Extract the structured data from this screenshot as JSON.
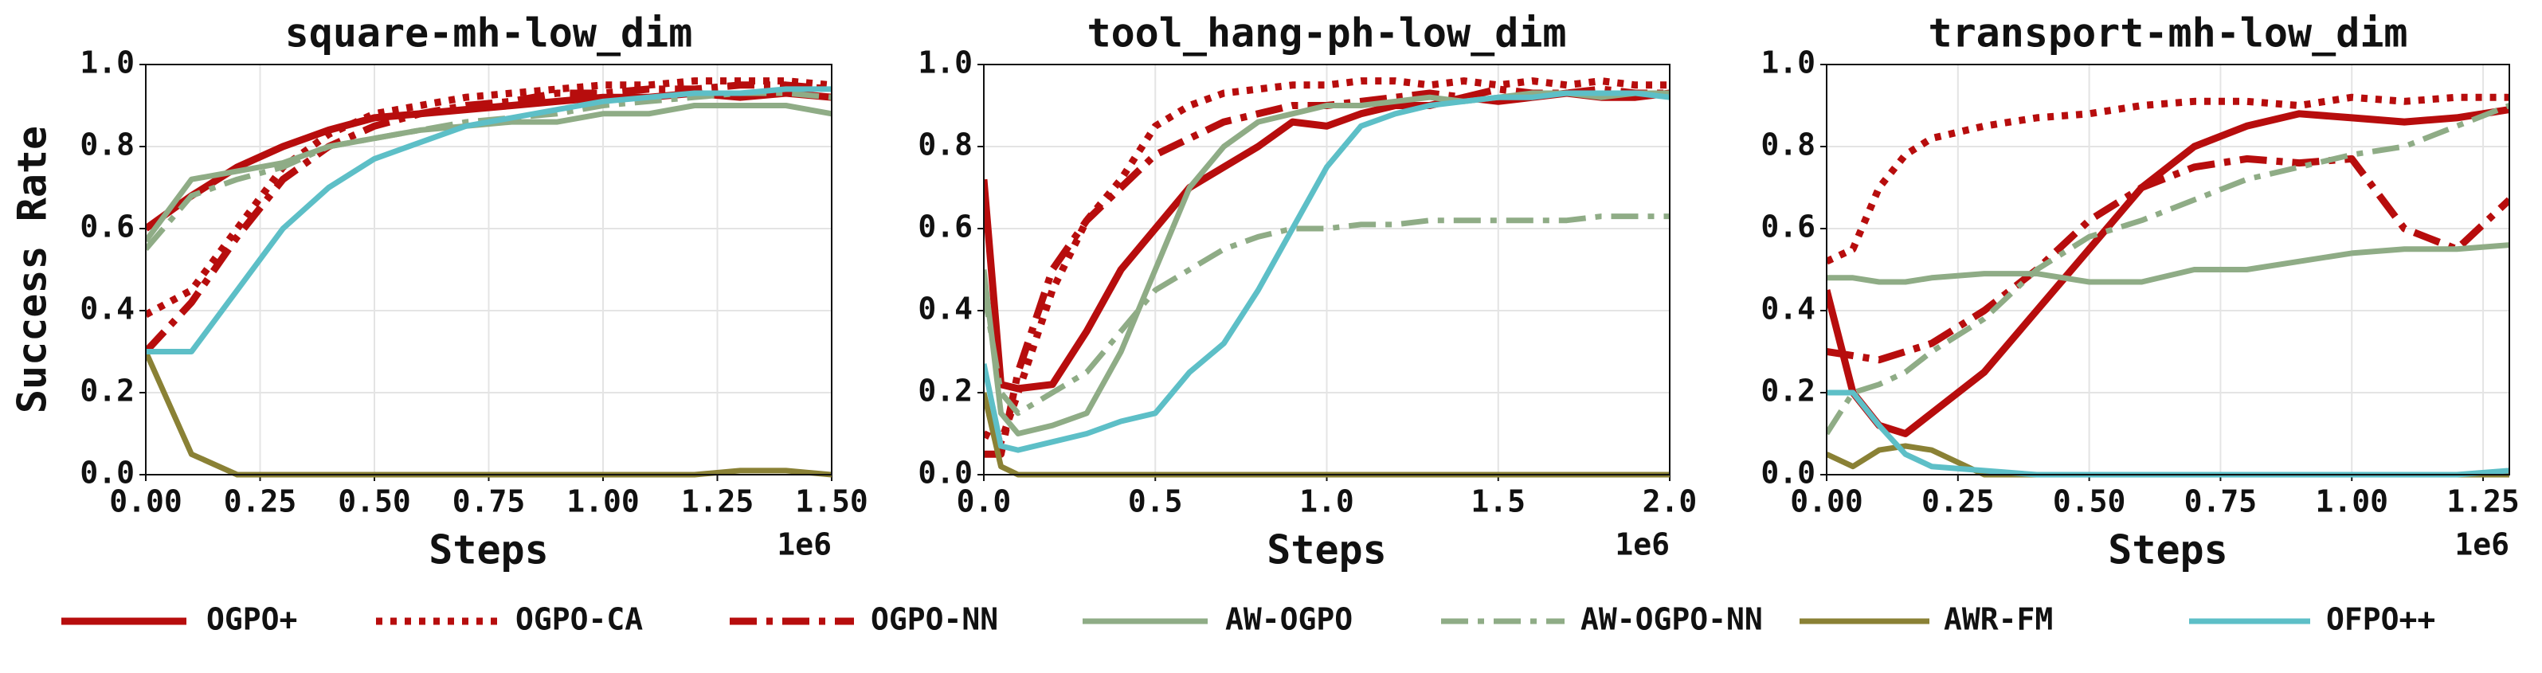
{
  "chart_data": [
    {
      "type": "line",
      "title": "square-mh-low_dim",
      "y_label": "Success Rate",
      "x_label": "Steps",
      "x_offset_label": "1e6",
      "xlim": [
        0,
        1.5
      ],
      "ylim": [
        0,
        1
      ],
      "grid": true,
      "xticks": [
        {
          "value": 0,
          "label": "0.00"
        },
        {
          "value": 0.25,
          "label": "0.25"
        },
        {
          "value": 0.5,
          "label": "0.50"
        },
        {
          "value": 0.75,
          "label": "0.75"
        },
        {
          "value": 1,
          "label": "1.00"
        },
        {
          "value": 1.25,
          "label": "1.25"
        },
        {
          "value": 1.5,
          "label": "1.50"
        }
      ],
      "yticks": [
        {
          "value": 0,
          "label": "0.0"
        },
        {
          "value": 0.2,
          "label": "0.2"
        },
        {
          "value": 0.4,
          "label": "0.4"
        },
        {
          "value": 0.6,
          "label": "0.6"
        },
        {
          "value": 0.8,
          "label": "0.8"
        },
        {
          "value": 1,
          "label": "1.0"
        }
      ],
      "x": [
        0,
        0.1,
        0.2,
        0.3,
        0.4,
        0.5,
        0.6,
        0.7,
        0.8,
        0.9,
        1.0,
        1.1,
        1.2,
        1.3,
        1.4,
        1.5
      ],
      "series": [
        {
          "name": "OGPO+",
          "color": "#b70d0d",
          "style": "solid",
          "values": [
            0.6,
            0.68,
            0.75,
            0.8,
            0.84,
            0.87,
            0.88,
            0.89,
            0.9,
            0.91,
            0.92,
            0.92,
            0.93,
            0.92,
            0.93,
            0.92
          ]
        },
        {
          "name": "OGPO-CA",
          "color": "#b70d0d",
          "style": "dotted",
          "values": [
            0.39,
            0.45,
            0.6,
            0.75,
            0.83,
            0.88,
            0.9,
            0.92,
            0.93,
            0.94,
            0.95,
            0.95,
            0.96,
            0.96,
            0.96,
            0.95
          ]
        },
        {
          "name": "OGPO-NN",
          "color": "#b70d0d",
          "style": "dashdot",
          "values": [
            0.3,
            0.42,
            0.58,
            0.72,
            0.8,
            0.85,
            0.88,
            0.9,
            0.91,
            0.93,
            0.93,
            0.94,
            0.94,
            0.95,
            0.95,
            0.94
          ]
        },
        {
          "name": "AW-OGPO",
          "color": "#8fac86",
          "style": "solid",
          "values": [
            0.57,
            0.72,
            0.74,
            0.76,
            0.8,
            0.82,
            0.84,
            0.85,
            0.86,
            0.86,
            0.88,
            0.88,
            0.9,
            0.9,
            0.9,
            0.88
          ]
        },
        {
          "name": "AW-OGPO-NN",
          "color": "#8fac86",
          "style": "dashdot",
          "values": [
            0.55,
            0.68,
            0.72,
            0.75,
            0.8,
            0.82,
            0.84,
            0.86,
            0.87,
            0.88,
            0.9,
            0.91,
            0.92,
            0.93,
            0.93,
            0.92
          ]
        },
        {
          "name": "AWR-FM",
          "color": "#8a8135",
          "style": "solid",
          "values": [
            0.3,
            0.05,
            0.0,
            0,
            0,
            0,
            0,
            0,
            0,
            0,
            0,
            0,
            0,
            0.01,
            0.01,
            0.0
          ]
        },
        {
          "name": "OFPO++",
          "color": "#5dbfc7",
          "style": "solid",
          "values": [
            0.3,
            0.3,
            0.45,
            0.6,
            0.7,
            0.77,
            0.81,
            0.85,
            0.87,
            0.89,
            0.91,
            0.92,
            0.93,
            0.93,
            0.94,
            0.94
          ]
        }
      ]
    },
    {
      "type": "line",
      "title": "tool_hang-ph-low_dim",
      "x_label": "Steps",
      "x_offset_label": "1e6",
      "xlim": [
        0,
        2
      ],
      "ylim": [
        0,
        1
      ],
      "grid": true,
      "xticks": [
        {
          "value": 0,
          "label": "0.0"
        },
        {
          "value": 0.5,
          "label": "0.5"
        },
        {
          "value": 1,
          "label": "1.0"
        },
        {
          "value": 1.5,
          "label": "1.5"
        },
        {
          "value": 2,
          "label": "2.0"
        }
      ],
      "yticks": [
        {
          "value": 0,
          "label": "0.0"
        },
        {
          "value": 0.2,
          "label": "0.2"
        },
        {
          "value": 0.4,
          "label": "0.4"
        },
        {
          "value": 0.6,
          "label": "0.6"
        },
        {
          "value": 0.8,
          "label": "0.8"
        },
        {
          "value": 1,
          "label": "1.0"
        }
      ],
      "x": [
        0,
        0.05,
        0.1,
        0.2,
        0.3,
        0.4,
        0.5,
        0.6,
        0.7,
        0.8,
        0.9,
        1.0,
        1.1,
        1.2,
        1.3,
        1.4,
        1.5,
        1.6,
        1.7,
        1.8,
        1.9,
        2.0
      ],
      "series": [
        {
          "name": "OGPO+",
          "color": "#b70d0d",
          "style": "solid",
          "values": [
            0.72,
            0.22,
            0.21,
            0.22,
            0.35,
            0.5,
            0.6,
            0.7,
            0.75,
            0.8,
            0.86,
            0.85,
            0.88,
            0.9,
            0.9,
            0.92,
            0.91,
            0.92,
            0.93,
            0.92,
            0.92,
            0.93
          ]
        },
        {
          "name": "OGPO-CA",
          "color": "#b70d0d",
          "style": "dotted",
          "values": [
            0.1,
            0.08,
            0.2,
            0.45,
            0.62,
            0.72,
            0.85,
            0.9,
            0.93,
            0.94,
            0.95,
            0.95,
            0.96,
            0.96,
            0.95,
            0.96,
            0.95,
            0.96,
            0.95,
            0.96,
            0.95,
            0.95
          ]
        },
        {
          "name": "OGPO-NN",
          "color": "#b70d0d",
          "style": "dashdot",
          "values": [
            0.05,
            0.05,
            0.25,
            0.5,
            0.62,
            0.7,
            0.78,
            0.82,
            0.86,
            0.88,
            0.9,
            0.9,
            0.91,
            0.92,
            0.93,
            0.92,
            0.94,
            0.93,
            0.93,
            0.94,
            0.93,
            0.93
          ]
        },
        {
          "name": "AW-OGPO",
          "color": "#8fac86",
          "style": "solid",
          "values": [
            0.5,
            0.15,
            0.1,
            0.12,
            0.15,
            0.3,
            0.5,
            0.7,
            0.8,
            0.86,
            0.88,
            0.9,
            0.9,
            0.91,
            0.92,
            0.91,
            0.92,
            0.93,
            0.93,
            0.92,
            0.93,
            0.93
          ]
        },
        {
          "name": "AW-OGPO-NN",
          "color": "#8fac86",
          "style": "dashdot",
          "values": [
            0.45,
            0.2,
            0.15,
            0.2,
            0.25,
            0.35,
            0.45,
            0.5,
            0.55,
            0.58,
            0.6,
            0.6,
            0.61,
            0.61,
            0.62,
            0.62,
            0.62,
            0.62,
            0.62,
            0.63,
            0.63,
            0.63
          ]
        },
        {
          "name": "AWR-FM",
          "color": "#8a8135",
          "style": "solid",
          "values": [
            0.2,
            0.02,
            0,
            0,
            0,
            0,
            0,
            0,
            0,
            0,
            0,
            0,
            0,
            0,
            0,
            0,
            0,
            0,
            0,
            0,
            0,
            0
          ]
        },
        {
          "name": "OFPO++",
          "color": "#5dbfc7",
          "style": "solid",
          "values": [
            0.27,
            0.07,
            0.06,
            0.08,
            0.1,
            0.13,
            0.15,
            0.25,
            0.32,
            0.45,
            0.6,
            0.75,
            0.85,
            0.88,
            0.9,
            0.91,
            0.92,
            0.92,
            0.93,
            0.93,
            0.93,
            0.92
          ]
        }
      ]
    },
    {
      "type": "line",
      "title": "transport-mh-low_dim",
      "x_label": "Steps",
      "x_offset_label": "1e6",
      "xlim": [
        0,
        1.3
      ],
      "ylim": [
        0,
        1
      ],
      "grid": true,
      "xticks": [
        {
          "value": 0,
          "label": "0.00"
        },
        {
          "value": 0.25,
          "label": "0.25"
        },
        {
          "value": 0.5,
          "label": "0.50"
        },
        {
          "value": 0.75,
          "label": "0.75"
        },
        {
          "value": 1,
          "label": "1.00"
        },
        {
          "value": 1.25,
          "label": "1.25"
        }
      ],
      "yticks": [
        {
          "value": 0,
          "label": "0.0"
        },
        {
          "value": 0.2,
          "label": "0.2"
        },
        {
          "value": 0.4,
          "label": "0.4"
        },
        {
          "value": 0.6,
          "label": "0.6"
        },
        {
          "value": 0.8,
          "label": "0.8"
        },
        {
          "value": 1,
          "label": "1.0"
        }
      ],
      "x": [
        0,
        0.05,
        0.1,
        0.15,
        0.2,
        0.3,
        0.4,
        0.5,
        0.6,
        0.7,
        0.8,
        0.9,
        1.0,
        1.1,
        1.2,
        1.3
      ],
      "series": [
        {
          "name": "OGPO+",
          "color": "#b70d0d",
          "style": "solid",
          "values": [
            0.45,
            0.2,
            0.12,
            0.1,
            0.15,
            0.25,
            0.4,
            0.55,
            0.7,
            0.8,
            0.85,
            0.88,
            0.87,
            0.86,
            0.87,
            0.89
          ]
        },
        {
          "name": "OGPO-CA",
          "color": "#b70d0d",
          "style": "dotted",
          "values": [
            0.52,
            0.55,
            0.7,
            0.78,
            0.82,
            0.85,
            0.87,
            0.88,
            0.9,
            0.91,
            0.91,
            0.9,
            0.92,
            0.91,
            0.92,
            0.92
          ]
        },
        {
          "name": "OGPO-NN",
          "color": "#b70d0d",
          "style": "dashdot",
          "values": [
            0.3,
            0.29,
            0.28,
            0.3,
            0.32,
            0.4,
            0.5,
            0.62,
            0.7,
            0.75,
            0.77,
            0.76,
            0.77,
            0.6,
            0.55,
            0.67
          ]
        },
        {
          "name": "AW-OGPO",
          "color": "#8fac86",
          "style": "solid",
          "values": [
            0.48,
            0.48,
            0.47,
            0.47,
            0.48,
            0.49,
            0.49,
            0.47,
            0.47,
            0.5,
            0.5,
            0.52,
            0.54,
            0.55,
            0.55,
            0.56
          ]
        },
        {
          "name": "AW-OGPO-NN",
          "color": "#8fac86",
          "style": "dashdot",
          "values": [
            0.1,
            0.2,
            0.22,
            0.25,
            0.3,
            0.38,
            0.5,
            0.58,
            0.62,
            0.67,
            0.72,
            0.75,
            0.78,
            0.8,
            0.85,
            0.9
          ]
        },
        {
          "name": "AWR-FM",
          "color": "#8a8135",
          "style": "solid",
          "values": [
            0.05,
            0.02,
            0.06,
            0.07,
            0.06,
            0,
            0,
            0,
            0,
            0,
            0,
            0,
            0,
            0,
            0,
            0
          ]
        },
        {
          "name": "OFPO++",
          "color": "#5dbfc7",
          "style": "solid",
          "values": [
            0.2,
            0.2,
            0.12,
            0.05,
            0.02,
            0.01,
            0,
            0,
            0,
            0,
            0,
            0,
            0,
            0,
            0,
            0.01
          ]
        }
      ]
    }
  ]
}
